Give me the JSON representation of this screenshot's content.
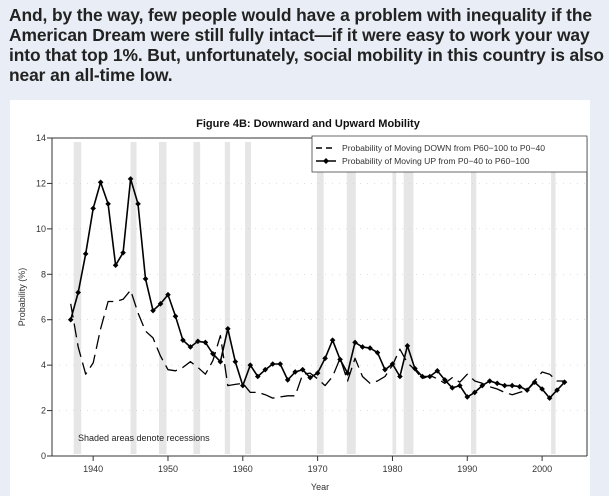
{
  "headline": "And, by the way, few people would have a problem with inequality if the American Dream were still fully intact—if it were easy to work your way into that top 1%. But, unfortunately, social mobility in this country is also near an all-time low.",
  "colors": {
    "page_background": "#e9eef6",
    "panel_background": "#ffffff",
    "recession_shade": "#e6e6e6",
    "series_line": "#000000"
  },
  "chart_data": {
    "type": "line",
    "title": "Figure 4B: Downward and Upward Mobility",
    "xlabel": "Year",
    "ylabel": "Probability (%)",
    "xlim": [
      1934.5,
      2006
    ],
    "ylim": [
      0,
      14
    ],
    "xticks": [
      1940,
      1950,
      1960,
      1970,
      1980,
      1990,
      2000
    ],
    "yticks": [
      0,
      2,
      4,
      6,
      8,
      10,
      12,
      14
    ],
    "grid": "horizontal dotted",
    "legend_position": "top-right",
    "annotation": "Shaded areas denote recessions",
    "recessions": [
      [
        1937.4,
        1938.4
      ],
      [
        1945.0,
        1945.8
      ],
      [
        1948.8,
        1949.8
      ],
      [
        1953.4,
        1954.3
      ],
      [
        1957.6,
        1958.3
      ],
      [
        1960.3,
        1961.1
      ],
      [
        1969.9,
        1970.8
      ],
      [
        1973.9,
        1975.1
      ],
      [
        1980.0,
        1980.5
      ],
      [
        1981.5,
        1982.8
      ],
      [
        1990.5,
        1991.2
      ],
      [
        2001.2,
        2001.8
      ]
    ],
    "x": [
      1937,
      1938,
      1939,
      1940,
      1941,
      1942,
      1943,
      1944,
      1945,
      1946,
      1947,
      1948,
      1949,
      1950,
      1951,
      1952,
      1953,
      1954,
      1955,
      1956,
      1957,
      1958,
      1959,
      1960,
      1961,
      1962,
      1963,
      1964,
      1965,
      1966,
      1967,
      1968,
      1969,
      1970,
      1971,
      1972,
      1973,
      1974,
      1975,
      1976,
      1977,
      1978,
      1979,
      1980,
      1981,
      1982,
      1983,
      1984,
      1985,
      1986,
      1987,
      1988,
      1989,
      1990,
      1991,
      1992,
      1993,
      1994,
      1995,
      1996,
      1997,
      1998,
      1999,
      2000,
      2001,
      2002,
      2003
    ],
    "series": [
      {
        "name": "Probability of Moving DOWN from P60−100 to P0−40",
        "style": "dashed",
        "values": [
          6.7,
          4.8,
          3.6,
          4.1,
          5.6,
          6.8,
          6.8,
          6.9,
          7.3,
          6.3,
          5.5,
          5.2,
          4.4,
          3.8,
          3.75,
          3.9,
          4.15,
          3.9,
          3.6,
          4.2,
          5.3,
          3.1,
          3.15,
          3.2,
          2.8,
          2.8,
          2.7,
          2.55,
          2.6,
          2.65,
          2.65,
          3.6,
          3.65,
          3.4,
          3.1,
          3.5,
          4.3,
          3.3,
          4.3,
          3.5,
          3.2,
          3.3,
          3.5,
          4.0,
          4.7,
          4.1,
          3.8,
          3.4,
          3.55,
          3.4,
          3.2,
          3.45,
          3.25,
          3.6,
          3.3,
          3.2,
          3.05,
          2.95,
          2.8,
          2.7,
          2.8,
          2.9,
          3.3,
          3.7,
          3.6,
          3.3,
          3.3
        ]
      },
      {
        "name": "Probability of Moving UP from P0−40 to P60−100",
        "style": "solid-markers",
        "values": [
          6.0,
          7.2,
          8.9,
          10.9,
          12.05,
          11.1,
          8.4,
          8.95,
          12.2,
          11.1,
          7.8,
          6.4,
          6.7,
          7.1,
          6.15,
          5.1,
          4.8,
          5.05,
          5.0,
          4.5,
          4.15,
          5.6,
          4.15,
          3.1,
          4.0,
          3.5,
          3.8,
          4.05,
          4.05,
          3.35,
          3.7,
          3.8,
          3.45,
          3.65,
          4.3,
          5.1,
          4.25,
          3.65,
          5.0,
          4.8,
          4.75,
          4.55,
          3.8,
          4.05,
          3.5,
          4.85,
          3.85,
          3.5,
          3.5,
          3.75,
          3.35,
          3.0,
          3.1,
          2.6,
          2.8,
          3.1,
          3.3,
          3.2,
          3.1,
          3.1,
          3.05,
          2.9,
          3.25,
          2.95,
          2.55,
          2.9,
          3.25
        ]
      }
    ]
  }
}
